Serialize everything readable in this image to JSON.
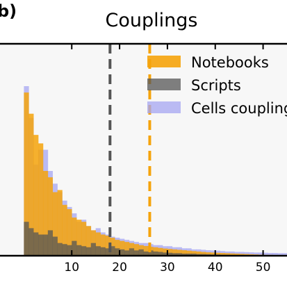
{
  "panel_label": "b)",
  "colors": {
    "notebooks": "#f5a30b",
    "scripts": "#555555",
    "cells": "#a6a6f2",
    "axes_bg": "#f7f7f7"
  },
  "chart_data": {
    "type": "histogram",
    "title": "Couplings",
    "xlabel": "",
    "ylabel": "",
    "xlim": [
      -5,
      55
    ],
    "ylim": [
      0,
      1
    ],
    "xticks": [
      10,
      20,
      30,
      40,
      50
    ],
    "grid": false,
    "legend_position": "top-right",
    "bin_width": 1,
    "bin_start": -5,
    "vlines": [
      {
        "series": "Scripts",
        "x": 18
      },
      {
        "series": "Notebooks",
        "x": 26.3
      }
    ],
    "series": [
      {
        "name": "Notebooks",
        "values": [
          0,
          0,
          0,
          0,
          0,
          0.77,
          0.67,
          0.57,
          0.53,
          0.4,
          0.37,
          0.3,
          0.31,
          0.24,
          0.22,
          0.18,
          0.17,
          0.16,
          0.14,
          0.12,
          0.11,
          0.1,
          0.095,
          0.085,
          0.075,
          0.07,
          0.065,
          0.06,
          0.055,
          0.05,
          0.046,
          0.042,
          0.04,
          0.037,
          0.034,
          0.032,
          0.03,
          0.028,
          0.026,
          0.024,
          0.022,
          0.02,
          0.018,
          0.016,
          0.015,
          0.014,
          0.013,
          0.012,
          0.011,
          0.01,
          0.009,
          0.008,
          0.007,
          0.006,
          0.005,
          0.004,
          0.004,
          0.003,
          0.003,
          0.002
        ]
      },
      {
        "name": "Scripts",
        "values": [
          0,
          0,
          0,
          0,
          0,
          0.16,
          0.13,
          0.11,
          0.1,
          0.1,
          0.12,
          0.09,
          0.06,
          0.055,
          0.05,
          0.07,
          0.05,
          0.045,
          0.04,
          0.06,
          0.045,
          0.04,
          0.035,
          0.045,
          0.035,
          0.03,
          0.025,
          0.035,
          0.025,
          0.03,
          0.02,
          0.025,
          0.02,
          0.018,
          0.015,
          0.014,
          0.012,
          0.012,
          0.01,
          0.01,
          0.01,
          0.008,
          0.008,
          0.007,
          0.006,
          0.006,
          0.005,
          0.005,
          0.004,
          0.004,
          0.004,
          0.003,
          0.003,
          0.003,
          0.002,
          0.002,
          0.002,
          0.002,
          0.001,
          0.001
        ]
      },
      {
        "name": "Cells couplings",
        "values": [
          0,
          0,
          0,
          0,
          0,
          0.8,
          0.65,
          0.43,
          0.5,
          0.5,
          0.4,
          0.34,
          0.3,
          0.26,
          0.23,
          0.2,
          0.16,
          0.17,
          0.14,
          0.12,
          0.13,
          0.11,
          0.1,
          0.09,
          0.085,
          0.08,
          0.075,
          0.07,
          0.065,
          0.06,
          0.06,
          0.055,
          0.05,
          0.05,
          0.045,
          0.045,
          0.04,
          0.04,
          0.035,
          0.035,
          0.03,
          0.03,
          0.028,
          0.026,
          0.025,
          0.024,
          0.022,
          0.02,
          0.02,
          0.018,
          0.018,
          0.017,
          0.016,
          0.015,
          0.015,
          0.014,
          0.013,
          0.013,
          0.012,
          0.012
        ]
      }
    ]
  }
}
